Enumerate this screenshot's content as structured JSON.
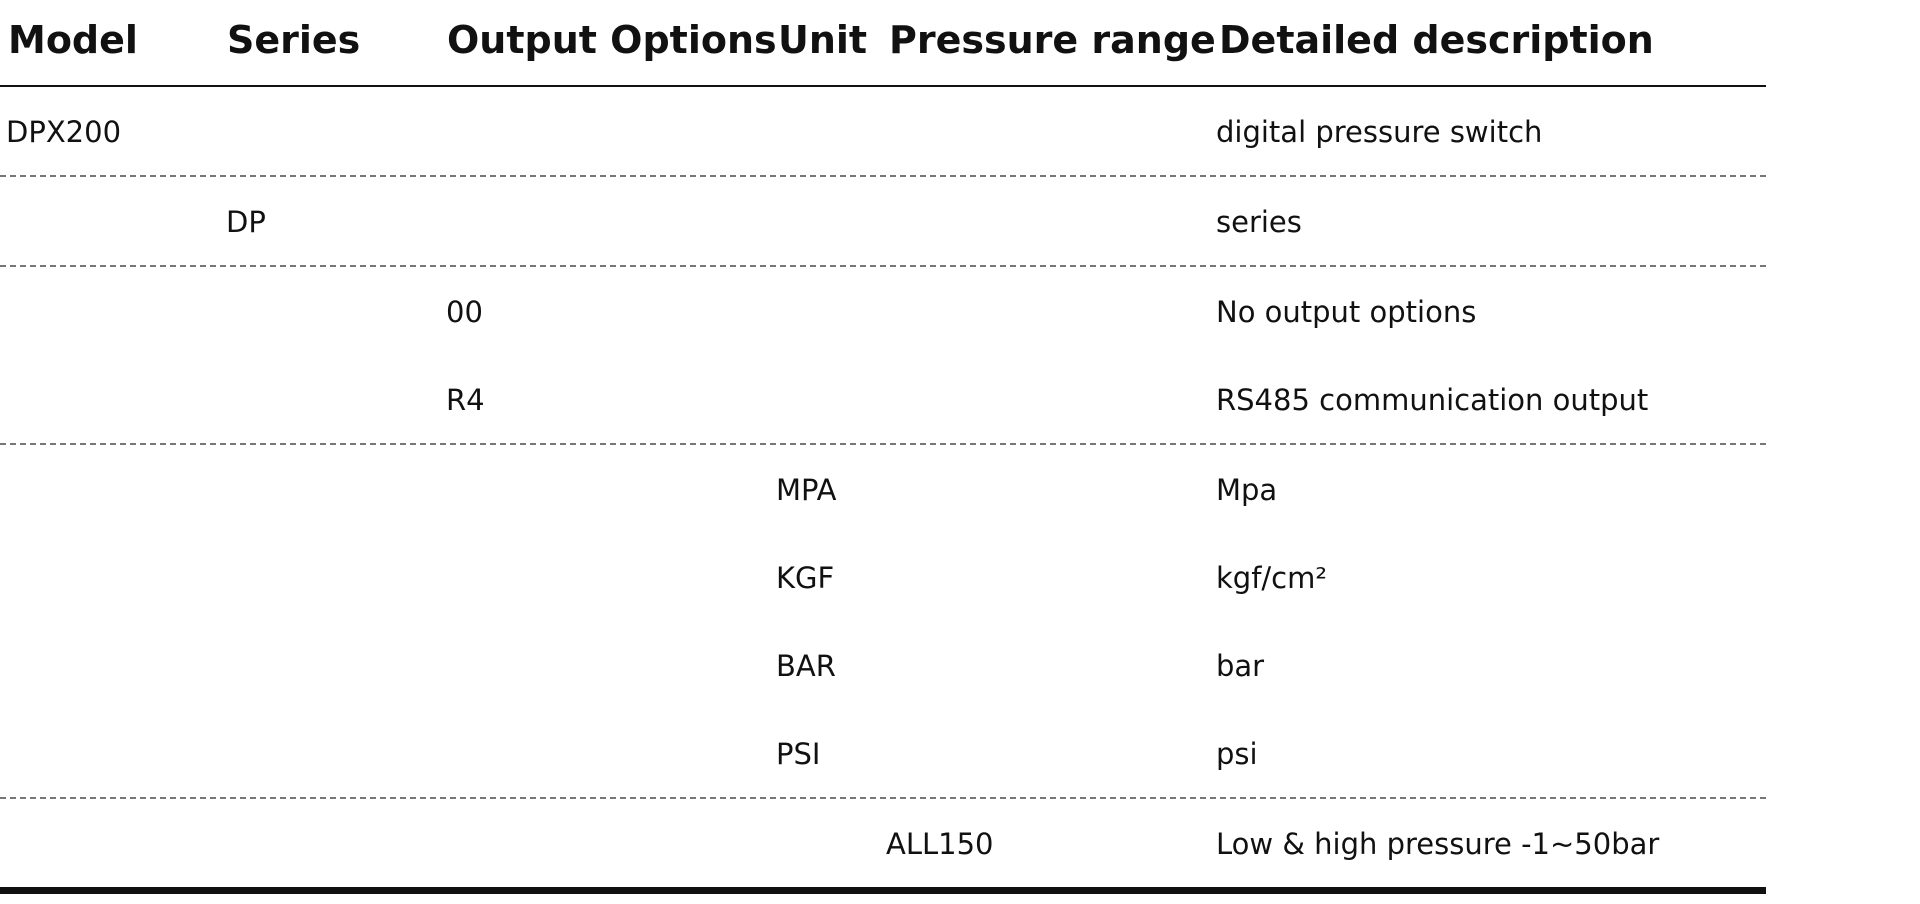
{
  "columns": {
    "model": "Model",
    "series": "Series",
    "output": "Output Options",
    "unit": "Unit",
    "range": "Pressure range",
    "desc": "Detailed description"
  },
  "rows": {
    "model_dpx200": {
      "code": "DPX200",
      "desc": "digital pressure switch"
    },
    "series_dp": {
      "code": "DP",
      "desc": "series"
    },
    "output_00": {
      "code": "00",
      "desc": "No output options"
    },
    "output_r4": {
      "code": "R4",
      "desc": "RS485 communication output"
    },
    "unit_mpa": {
      "code": "MPA",
      "desc": "Mpa"
    },
    "unit_kgf": {
      "code": "KGF",
      "desc": "kgf/cm²"
    },
    "unit_bar": {
      "code": "BAR",
      "desc": "bar"
    },
    "unit_psi": {
      "code": "PSI",
      "desc": "psi"
    },
    "range_all150": {
      "code": "ALL150",
      "desc": "Low & high pressure -1~50bar"
    }
  }
}
